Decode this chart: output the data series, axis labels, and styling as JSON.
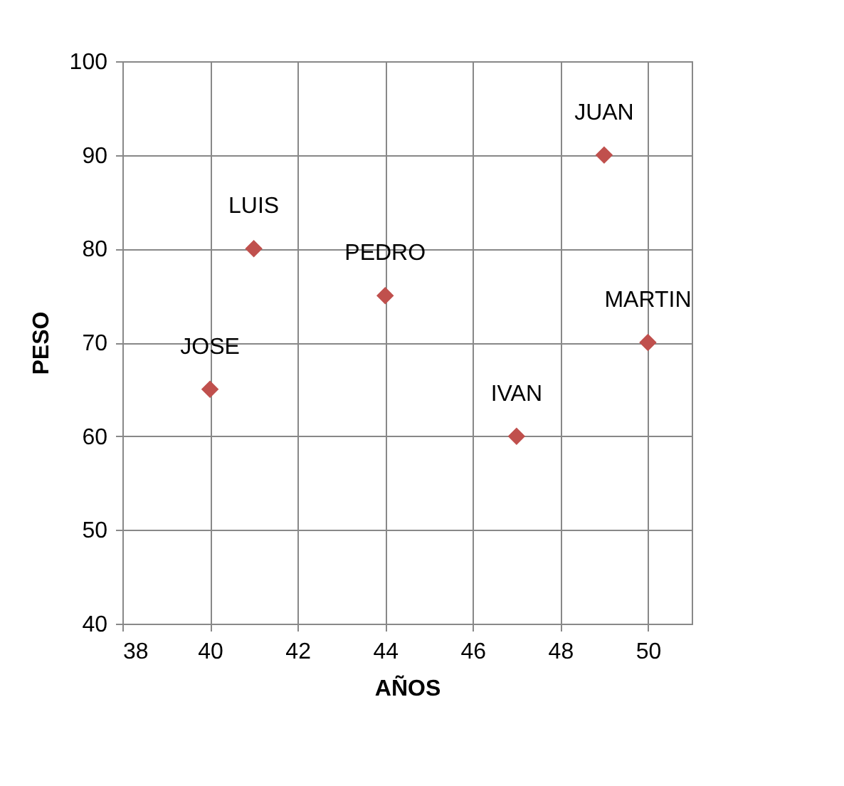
{
  "chart_data": {
    "type": "scatter",
    "xlabel": "AÑOS",
    "ylabel": "PESO",
    "x": [
      40,
      41,
      44,
      47,
      49,
      50
    ],
    "series": [
      {
        "color": "#c0504d",
        "values": [
          65,
          80,
          75,
          60,
          90,
          70
        ]
      }
    ],
    "annotations": [
      {
        "text": "JOSE",
        "x": 40,
        "y": 65
      },
      {
        "text": "LUIS",
        "x": 41,
        "y": 80
      },
      {
        "text": "PEDRO",
        "x": 44,
        "y": 75
      },
      {
        "text": "IVAN",
        "x": 47,
        "y": 60
      },
      {
        "text": "JUAN",
        "x": 49,
        "y": 90
      },
      {
        "text": "MARTIN",
        "x": 50,
        "y": 70
      }
    ],
    "xlim": [
      38,
      51
    ],
    "xticks": [
      38,
      40,
      42,
      44,
      46,
      48,
      50
    ],
    "ylim": [
      40,
      100
    ],
    "yticks": [
      40,
      50,
      60,
      70,
      80,
      90,
      100
    ],
    "grid": true,
    "marker": "diamond"
  }
}
